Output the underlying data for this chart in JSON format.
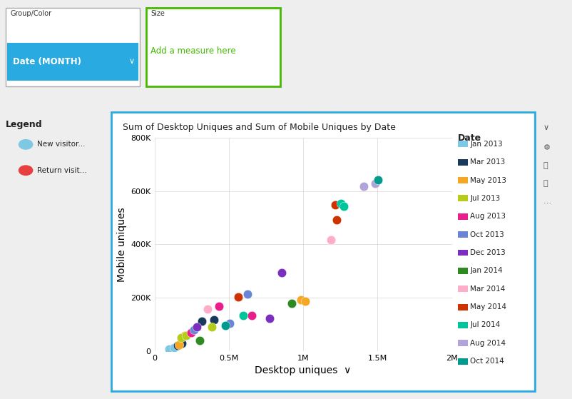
{
  "title": "Sum of Desktop Uniques and Sum of Mobile Uniques by Date",
  "xlabel": "Desktop uniques",
  "ylabel": "Mobile uniques",
  "xlim": [
    0,
    2000000
  ],
  "ylim": [
    0,
    800000
  ],
  "xticks": [
    0,
    500000,
    1000000,
    1500000,
    2000000
  ],
  "xtick_labels": [
    "0",
    "0.5M",
    "1M",
    "1.5M",
    "2M"
  ],
  "yticks": [
    0,
    200000,
    400000,
    600000,
    800000
  ],
  "ytick_labels": [
    "0",
    "200K",
    "400K",
    "600K",
    "800K"
  ],
  "legend_title": "Date",
  "points": [
    {
      "label": "Jan 2013",
      "color": "#7EC8E3",
      "desktop": 100000,
      "mobile": 8000
    },
    {
      "label": "Jan 2013",
      "color": "#7EC8E3",
      "desktop": 130000,
      "mobile": 14000
    },
    {
      "label": "Mar 2013",
      "color": "#1A3A5C",
      "desktop": 155000,
      "mobile": 20000
    },
    {
      "label": "Mar 2013",
      "color": "#1A3A5C",
      "desktop": 185000,
      "mobile": 30000
    },
    {
      "label": "Mar 2013",
      "color": "#1A3A5C",
      "desktop": 320000,
      "mobile": 112000
    },
    {
      "label": "Mar 2013",
      "color": "#1A3A5C",
      "desktop": 400000,
      "mobile": 118000
    },
    {
      "label": "May 2013",
      "color": "#F5A623",
      "desktop": 165000,
      "mobile": 25000
    },
    {
      "label": "May 2013",
      "color": "#F5A623",
      "desktop": 205000,
      "mobile": 58000
    },
    {
      "label": "May 2013",
      "color": "#F5A623",
      "desktop": 985000,
      "mobile": 192000
    },
    {
      "label": "May 2013",
      "color": "#F5A623",
      "desktop": 1015000,
      "mobile": 188000
    },
    {
      "label": "Jul 2013",
      "color": "#B5CC18",
      "desktop": 178000,
      "mobile": 50000
    },
    {
      "label": "Jul 2013",
      "color": "#B5CC18",
      "desktop": 215000,
      "mobile": 58000
    },
    {
      "label": "Jul 2013",
      "color": "#B5CC18",
      "desktop": 385000,
      "mobile": 92000
    },
    {
      "label": "Aug 2013",
      "color": "#E91E8C",
      "desktop": 245000,
      "mobile": 68000
    },
    {
      "label": "Aug 2013",
      "color": "#E91E8C",
      "desktop": 435000,
      "mobile": 168000
    },
    {
      "label": "Aug 2013",
      "color": "#E91E8C",
      "desktop": 655000,
      "mobile": 133000
    },
    {
      "label": "Oct 2013",
      "color": "#6B85D6",
      "desktop": 265000,
      "mobile": 80000
    },
    {
      "label": "Oct 2013",
      "color": "#6B85D6",
      "desktop": 505000,
      "mobile": 103000
    },
    {
      "label": "Oct 2013",
      "color": "#6B85D6",
      "desktop": 625000,
      "mobile": 213000
    },
    {
      "label": "Dec 2013",
      "color": "#7B2FBE",
      "desktop": 285000,
      "mobile": 90000
    },
    {
      "label": "Dec 2013",
      "color": "#7B2FBE",
      "desktop": 775000,
      "mobile": 123000
    },
    {
      "label": "Dec 2013",
      "color": "#7B2FBE",
      "desktop": 855000,
      "mobile": 293000
    },
    {
      "label": "Jan 2014",
      "color": "#2E8B22",
      "desktop": 305000,
      "mobile": 40000
    },
    {
      "label": "Jan 2014",
      "color": "#2E8B22",
      "desktop": 925000,
      "mobile": 178000
    },
    {
      "label": "Mar 2014",
      "color": "#FFAEC9",
      "desktop": 355000,
      "mobile": 158000
    },
    {
      "label": "Mar 2014",
      "color": "#FFAEC9",
      "desktop": 1185000,
      "mobile": 418000
    },
    {
      "label": "May 2014",
      "color": "#CC3300",
      "desktop": 565000,
      "mobile": 202000
    },
    {
      "label": "May 2014",
      "color": "#CC3300",
      "desktop": 1225000,
      "mobile": 492000
    },
    {
      "label": "May 2014",
      "color": "#CC3300",
      "desktop": 1215000,
      "mobile": 548000
    },
    {
      "label": "Jul 2014",
      "color": "#00C49A",
      "desktop": 595000,
      "mobile": 133000
    },
    {
      "label": "Jul 2014",
      "color": "#00C49A",
      "desktop": 1255000,
      "mobile": 553000
    },
    {
      "label": "Jul 2014",
      "color": "#00C49A",
      "desktop": 1275000,
      "mobile": 542000
    },
    {
      "label": "Aug 2014",
      "color": "#B0A4D8",
      "desktop": 1405000,
      "mobile": 617000
    },
    {
      "label": "Aug 2014",
      "color": "#B0A4D8",
      "desktop": 1485000,
      "mobile": 628000
    },
    {
      "label": "Oct 2014",
      "color": "#009B8D",
      "desktop": 475000,
      "mobile": 97000
    },
    {
      "label": "Oct 2014",
      "color": "#009B8D",
      "desktop": 1505000,
      "mobile": 643000
    }
  ],
  "dot_size": 80,
  "bg_color": "#FFFFFF",
  "grid_color": "#DDDDDD",
  "panel_bg": "#FFFFFF",
  "outer_bg": "#EEEEEE",
  "top_bg": "#E8E8E8",
  "border_color": "#29ABE2",
  "legend_entries": [
    {
      "label": "Jan 2013",
      "color": "#7EC8E3"
    },
    {
      "label": "Mar 2013",
      "color": "#1A3A5C"
    },
    {
      "label": "May 2013",
      "color": "#F5A623"
    },
    {
      "label": "Jul 2013",
      "color": "#B5CC18"
    },
    {
      "label": "Aug 2013",
      "color": "#E91E8C"
    },
    {
      "label": "Oct 2013",
      "color": "#6B85D6"
    },
    {
      "label": "Dec 2013",
      "color": "#7B2FBE"
    },
    {
      "label": "Jan 2014",
      "color": "#2E8B22"
    },
    {
      "label": "Mar 2014",
      "color": "#FFAEC9"
    },
    {
      "label": "May 2014",
      "color": "#CC3300"
    },
    {
      "label": "Jul 2014",
      "color": "#00C49A"
    },
    {
      "label": "Aug 2014",
      "color": "#B0A4D8"
    },
    {
      "label": "Oct 2014",
      "color": "#009B8D"
    }
  ],
  "ui_group_label": "Group/Color",
  "ui_date_label": "Date (MONTH)",
  "ui_size_label": "Size",
  "ui_size_hint": "Add a measure here",
  "left_legend_title": "Legend",
  "left_legend_entries": [
    {
      "label": "New visitor...",
      "color": "#7EC8E3"
    },
    {
      "label": "Return visit...",
      "color": "#E84040"
    }
  ]
}
